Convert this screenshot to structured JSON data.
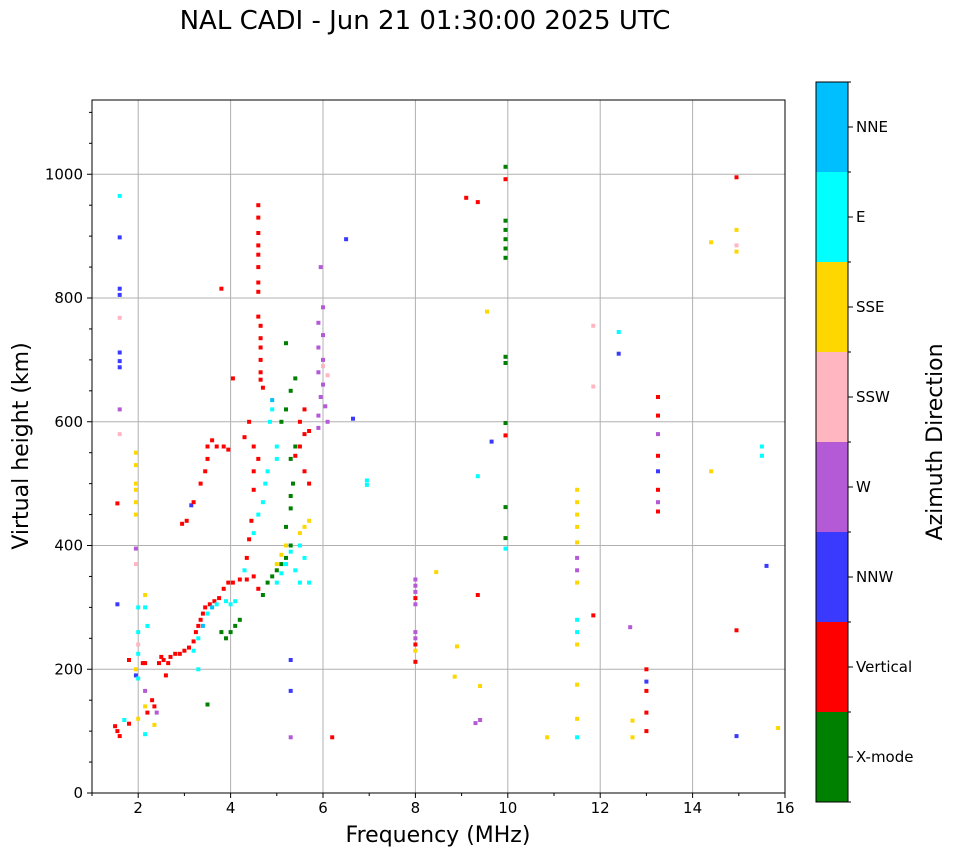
{
  "chart_data": {
    "type": "scatter",
    "title": "NAL CADI - Jun 21 01:30:00 2025 UTC",
    "xlabel": "Frequency (MHz)",
    "ylabel": "Virtual height (km)",
    "xlim": [
      1,
      16
    ],
    "ylim": [
      0,
      1120
    ],
    "xticks": [
      "2",
      "4",
      "6",
      "8",
      "10",
      "12",
      "14",
      "16"
    ],
    "yticks": [
      "0",
      "200",
      "400",
      "600",
      "800",
      "1000"
    ],
    "grid": true,
    "colorbar": {
      "label": "Azimuth Direction",
      "categories": [
        {
          "name": "X-mode",
          "color": "#008000"
        },
        {
          "name": "Vertical",
          "color": "#ff0000"
        },
        {
          "name": "NNW",
          "color": "#3a3aff"
        },
        {
          "name": "W",
          "color": "#b45ad6"
        },
        {
          "name": "SSW",
          "color": "#ffb6c1"
        },
        {
          "name": "SSE",
          "color": "#ffd700"
        },
        {
          "name": "E",
          "color": "#00ffff"
        },
        {
          "name": "NNE",
          "color": "#00bfff"
        }
      ]
    },
    "points": [
      [
        "Vertical",
        1.5,
        108
      ],
      [
        "Vertical",
        1.55,
        100
      ],
      [
        "Vertical",
        1.6,
        92
      ],
      [
        "Vertical",
        1.55,
        468
      ],
      [
        "NNW",
        1.55,
        305
      ],
      [
        "E",
        1.6,
        965
      ],
      [
        "NNW",
        1.6,
        898
      ],
      [
        "NNW",
        1.6,
        815
      ],
      [
        "NNW",
        1.6,
        805
      ],
      [
        "SSW",
        1.6,
        768
      ],
      [
        "NNW",
        1.6,
        712
      ],
      [
        "NNW",
        1.6,
        698
      ],
      [
        "NNW",
        1.6,
        688
      ],
      [
        "W",
        1.6,
        620
      ],
      [
        "SSW",
        1.6,
        580
      ],
      [
        "E",
        1.7,
        118
      ],
      [
        "Vertical",
        1.8,
        215
      ],
      [
        "Vertical",
        1.8,
        112
      ],
      [
        "SSE",
        1.95,
        550
      ],
      [
        "SSE",
        1.95,
        530
      ],
      [
        "SSE",
        1.95,
        500
      ],
      [
        "SSE",
        1.95,
        490
      ],
      [
        "SSE",
        1.95,
        470
      ],
      [
        "SSE",
        1.95,
        450
      ],
      [
        "W",
        1.95,
        395
      ],
      [
        "SSW",
        1.95,
        370
      ],
      [
        "SSE",
        1.95,
        200
      ],
      [
        "NNW",
        1.95,
        190
      ],
      [
        "E",
        2.0,
        300
      ],
      [
        "E",
        2.0,
        260
      ],
      [
        "SSW",
        2.0,
        240
      ],
      [
        "E",
        2.0,
        225
      ],
      [
        "E",
        2.0,
        185
      ],
      [
        "SSE",
        2.0,
        120
      ],
      [
        "Vertical",
        2.1,
        210
      ],
      [
        "Vertical",
        2.15,
        210
      ],
      [
        "SSE",
        2.15,
        140
      ],
      [
        "E",
        2.15,
        95
      ],
      [
        "W",
        2.15,
        165
      ],
      [
        "SSE",
        2.15,
        320
      ],
      [
        "E",
        2.15,
        300
      ],
      [
        "E",
        2.2,
        270
      ],
      [
        "Vertical",
        2.2,
        130
      ],
      [
        "Vertical",
        2.3,
        150
      ],
      [
        "Vertical",
        2.35,
        140
      ],
      [
        "SSE",
        2.35,
        110
      ],
      [
        "W",
        2.4,
        130
      ],
      [
        "Vertical",
        2.45,
        210
      ],
      [
        "Vertical",
        2.5,
        220
      ],
      [
        "Vertical",
        2.55,
        215
      ],
      [
        "Vertical",
        2.6,
        190
      ],
      [
        "Vertical",
        2.65,
        210
      ],
      [
        "Vertical",
        2.7,
        220
      ],
      [
        "Vertical",
        2.8,
        225
      ],
      [
        "Vertical",
        2.9,
        225
      ],
      [
        "Vertical",
        3.0,
        230
      ],
      [
        "Vertical",
        3.1,
        235
      ],
      [
        "Vertical",
        3.2,
        245
      ],
      [
        "Vertical",
        3.25,
        260
      ],
      [
        "Vertical",
        3.3,
        270
      ],
      [
        "Vertical",
        3.35,
        280
      ],
      [
        "Vertical",
        3.4,
        290
      ],
      [
        "Vertical",
        3.45,
        300
      ],
      [
        "Vertical",
        3.55,
        305
      ],
      [
        "Vertical",
        3.65,
        310
      ],
      [
        "Vertical",
        3.75,
        315
      ],
      [
        "Vertical",
        3.85,
        330
      ],
      [
        "Vertical",
        3.95,
        340
      ],
      [
        "Vertical",
        4.05,
        340
      ],
      [
        "Vertical",
        4.2,
        345
      ],
      [
        "Vertical",
        4.35,
        345
      ],
      [
        "E",
        3.2,
        230
      ],
      [
        "E",
        3.3,
        250
      ],
      [
        "NNE",
        3.4,
        270
      ],
      [
        "E",
        3.5,
        290
      ],
      [
        "NNE",
        3.6,
        300
      ],
      [
        "E",
        3.7,
        305
      ],
      [
        "E",
        3.9,
        310
      ],
      [
        "E",
        4.0,
        305
      ],
      [
        "E",
        4.1,
        310
      ],
      [
        "X-mode",
        3.8,
        260
      ],
      [
        "X-mode",
        3.9,
        250
      ],
      [
        "X-mode",
        4.0,
        260
      ],
      [
        "X-mode",
        4.1,
        270
      ],
      [
        "X-mode",
        4.2,
        280
      ],
      [
        "E",
        3.3,
        200
      ],
      [
        "X-mode",
        3.5,
        143
      ],
      [
        "Vertical",
        2.95,
        435
      ],
      [
        "Vertical",
        3.05,
        440
      ],
      [
        "NNW",
        3.15,
        465
      ],
      [
        "Vertical",
        3.2,
        470
      ],
      [
        "Vertical",
        3.35,
        500
      ],
      [
        "Vertical",
        3.45,
        520
      ],
      [
        "Vertical",
        3.5,
        540
      ],
      [
        "Vertical",
        3.5,
        560
      ],
      [
        "Vertical",
        3.6,
        570
      ],
      [
        "Vertical",
        3.7,
        560
      ],
      [
        "Vertical",
        3.85,
        560
      ],
      [
        "Vertical",
        3.95,
        555
      ],
      [
        "Vertical",
        3.8,
        815
      ],
      [
        "Vertical",
        4.05,
        670
      ],
      [
        "Vertical",
        4.6,
        950
      ],
      [
        "Vertical",
        4.6,
        930
      ],
      [
        "Vertical",
        4.6,
        905
      ],
      [
        "Vertical",
        4.6,
        885
      ],
      [
        "Vertical",
        4.6,
        870
      ],
      [
        "Vertical",
        4.6,
        850
      ],
      [
        "Vertical",
        4.6,
        825
      ],
      [
        "Vertical",
        4.6,
        810
      ],
      [
        "Vertical",
        4.6,
        770
      ],
      [
        "Vertical",
        4.65,
        755
      ],
      [
        "Vertical",
        4.65,
        735
      ],
      [
        "Vertical",
        4.65,
        720
      ],
      [
        "Vertical",
        4.65,
        700
      ],
      [
        "Vertical",
        4.65,
        680
      ],
      [
        "Vertical",
        4.65,
        668
      ],
      [
        "Vertical",
        4.7,
        655
      ],
      [
        "Vertical",
        4.4,
        600
      ],
      [
        "Vertical",
        4.3,
        575
      ],
      [
        "Vertical",
        4.5,
        560
      ],
      [
        "Vertical",
        4.6,
        540
      ],
      [
        "Vertical",
        4.5,
        520
      ],
      [
        "Vertical",
        4.5,
        490
      ],
      [
        "Vertical",
        4.45,
        440
      ],
      [
        "Vertical",
        4.4,
        410
      ],
      [
        "Vertical",
        4.35,
        380
      ],
      [
        "Vertical",
        4.5,
        350
      ],
      [
        "Vertical",
        4.6,
        330
      ],
      [
        "E",
        4.3,
        360
      ],
      [
        "E",
        4.5,
        420
      ],
      [
        "E",
        4.6,
        450
      ],
      [
        "E",
        4.7,
        470
      ],
      [
        "E",
        4.75,
        500
      ],
      [
        "E",
        4.8,
        520
      ],
      [
        "E",
        4.85,
        600
      ],
      [
        "NNE",
        4.9,
        635
      ],
      [
        "E",
        4.9,
        620
      ],
      [
        "E",
        5.0,
        560
      ],
      [
        "E",
        5.0,
        540
      ],
      [
        "X-mode",
        4.7,
        320
      ],
      [
        "X-mode",
        4.8,
        340
      ],
      [
        "X-mode",
        4.9,
        350
      ],
      [
        "X-mode",
        5.0,
        360
      ],
      [
        "X-mode",
        5.1,
        370
      ],
      [
        "X-mode",
        5.2,
        380
      ],
      [
        "X-mode",
        5.3,
        400
      ],
      [
        "X-mode",
        5.2,
        430
      ],
      [
        "X-mode",
        5.3,
        460
      ],
      [
        "X-mode",
        5.3,
        480
      ],
      [
        "X-mode",
        5.35,
        500
      ],
      [
        "X-mode",
        5.3,
        540
      ],
      [
        "X-mode",
        5.4,
        560
      ],
      [
        "X-mode",
        5.1,
        600
      ],
      [
        "X-mode",
        5.2,
        620
      ],
      [
        "X-mode",
        5.3,
        650
      ],
      [
        "X-mode",
        5.2,
        727
      ],
      [
        "X-mode",
        5.4,
        670
      ],
      [
        "E",
        5.0,
        340
      ],
      [
        "E",
        5.1,
        355
      ],
      [
        "E",
        5.2,
        370
      ],
      [
        "E",
        5.3,
        390
      ],
      [
        "E",
        5.4,
        360
      ],
      [
        "E",
        5.5,
        340
      ],
      [
        "SSE",
        5.0,
        370
      ],
      [
        "SSE",
        5.1,
        385
      ],
      [
        "SSE",
        5.2,
        400
      ],
      [
        "SSE",
        5.5,
        420
      ],
      [
        "SSE",
        5.6,
        430
      ],
      [
        "SSE",
        5.7,
        440
      ],
      [
        "E",
        5.6,
        380
      ],
      [
        "E",
        5.7,
        340
      ],
      [
        "E",
        5.5,
        400
      ],
      [
        "NNW",
        5.3,
        215
      ],
      [
        "NNW",
        5.3,
        165
      ],
      [
        "W",
        5.3,
        90
      ],
      [
        "Vertical",
        5.5,
        560
      ],
      [
        "Vertical",
        5.7,
        585
      ],
      [
        "Vertical",
        5.5,
        600
      ],
      [
        "Vertical",
        5.6,
        580
      ],
      [
        "Vertical",
        5.4,
        545
      ],
      [
        "Vertical",
        5.6,
        520
      ],
      [
        "Vertical",
        5.7,
        500
      ],
      [
        "Vertical",
        5.6,
        620
      ],
      [
        "W",
        5.9,
        610
      ],
      [
        "W",
        5.95,
        640
      ],
      [
        "W",
        6.0,
        660
      ],
      [
        "W",
        5.9,
        680
      ],
      [
        "W",
        6.0,
        700
      ],
      [
        "W",
        5.9,
        720
      ],
      [
        "W",
        6.0,
        740
      ],
      [
        "W",
        5.9,
        760
      ],
      [
        "W",
        6.0,
        785
      ],
      [
        "W",
        5.95,
        850
      ],
      [
        "W",
        5.9,
        590
      ],
      [
        "W",
        6.05,
        625
      ],
      [
        "W",
        6.1,
        600
      ],
      [
        "SSW",
        6.0,
        690
      ],
      [
        "SSW",
        6.1,
        675
      ],
      [
        "NNW",
        6.5,
        895
      ],
      [
        "NNW",
        6.65,
        605
      ],
      [
        "E",
        6.95,
        505
      ],
      [
        "E",
        6.95,
        498
      ],
      [
        "Vertical",
        6.2,
        90
      ],
      [
        "W",
        8.0,
        345
      ],
      [
        "W",
        8.0,
        335
      ],
      [
        "W",
        8.0,
        325
      ],
      [
        "Vertical",
        8.0,
        315
      ],
      [
        "W",
        8.0,
        305
      ],
      [
        "W",
        8.0,
        260
      ],
      [
        "W",
        8.0,
        250
      ],
      [
        "Vertical",
        8.0,
        240
      ],
      [
        "SSE",
        8.0,
        230
      ],
      [
        "Vertical",
        8.0,
        212
      ],
      [
        "SSE",
        8.45,
        357
      ],
      [
        "SSE",
        8.9,
        237
      ],
      [
        "SSE",
        8.85,
        188
      ],
      [
        "W",
        9.3,
        113
      ],
      [
        "W",
        9.4,
        118
      ],
      [
        "Vertical",
        9.35,
        320
      ],
      [
        "SSE",
        9.4,
        173
      ],
      [
        "E",
        9.35,
        512
      ],
      [
        "NNW",
        9.65,
        568
      ],
      [
        "SSE",
        9.55,
        778
      ],
      [
        "Vertical",
        9.1,
        962
      ],
      [
        "Vertical",
        9.35,
        955
      ],
      [
        "X-mode",
        9.95,
        1012
      ],
      [
        "Vertical",
        9.95,
        992
      ],
      [
        "X-mode",
        9.95,
        925
      ],
      [
        "X-mode",
        9.95,
        910
      ],
      [
        "X-mode",
        9.95,
        895
      ],
      [
        "X-mode",
        9.95,
        880
      ],
      [
        "X-mode",
        9.95,
        865
      ],
      [
        "X-mode",
        9.95,
        705
      ],
      [
        "X-mode",
        9.95,
        695
      ],
      [
        "X-mode",
        9.95,
        598
      ],
      [
        "Vertical",
        9.95,
        578
      ],
      [
        "X-mode",
        9.95,
        462
      ],
      [
        "X-mode",
        9.95,
        412
      ],
      [
        "E",
        9.95,
        395
      ],
      [
        "SSE",
        10.85,
        90
      ],
      [
        "SSE",
        11.5,
        490
      ],
      [
        "SSE",
        11.5,
        470
      ],
      [
        "SSE",
        11.5,
        450
      ],
      [
        "SSE",
        11.5,
        430
      ],
      [
        "SSE",
        11.5,
        405
      ],
      [
        "W",
        11.5,
        380
      ],
      [
        "W",
        11.5,
        360
      ],
      [
        "SSE",
        11.5,
        340
      ],
      [
        "E",
        11.5,
        280
      ],
      [
        "E",
        11.5,
        260
      ],
      [
        "SSE",
        11.5,
        240
      ],
      [
        "SSE",
        11.5,
        175
      ],
      [
        "SSE",
        11.5,
        120
      ],
      [
        "E",
        11.5,
        90
      ],
      [
        "SSW",
        11.85,
        755
      ],
      [
        "SSW",
        11.85,
        657
      ],
      [
        "Vertical",
        11.85,
        287
      ],
      [
        "E",
        12.4,
        745
      ],
      [
        "NNW",
        12.4,
        710
      ],
      [
        "W",
        12.65,
        268
      ],
      [
        "SSE",
        12.7,
        117
      ],
      [
        "SSE",
        12.7,
        90
      ],
      [
        "Vertical",
        13.25,
        640
      ],
      [
        "Vertical",
        13.25,
        610
      ],
      [
        "W",
        13.25,
        580
      ],
      [
        "Vertical",
        13.25,
        545
      ],
      [
        "NNW",
        13.25,
        520
      ],
      [
        "Vertical",
        13.25,
        490
      ],
      [
        "W",
        13.25,
        470
      ],
      [
        "Vertical",
        13.25,
        455
      ],
      [
        "Vertical",
        13.0,
        200
      ],
      [
        "NNW",
        13.0,
        180
      ],
      [
        "Vertical",
        13.0,
        165
      ],
      [
        "Vertical",
        13.0,
        130
      ],
      [
        "Vertical",
        13.0,
        100
      ],
      [
        "SSE",
        14.4,
        890
      ],
      [
        "SSE",
        14.4,
        520
      ],
      [
        "Vertical",
        14.95,
        995
      ],
      [
        "SSE",
        14.95,
        910
      ],
      [
        "SSW",
        14.95,
        885
      ],
      [
        "SSE",
        14.95,
        875
      ],
      [
        "Vertical",
        14.95,
        263
      ],
      [
        "NNW",
        14.95,
        92
      ],
      [
        "E",
        15.5,
        560
      ],
      [
        "E",
        15.5,
        545
      ],
      [
        "NNW",
        15.6,
        367
      ],
      [
        "SSE",
        15.85,
        105
      ]
    ]
  }
}
